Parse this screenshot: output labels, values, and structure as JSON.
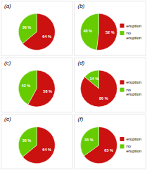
{
  "chart_data": [
    {
      "type": "pie",
      "title": "(a)",
      "values": [
        64,
        36
      ],
      "value_labels": [
        "64 %",
        "36 %"
      ],
      "colors": [
        "#cc1111",
        "#66cc00"
      ],
      "data_labels": true
    },
    {
      "type": "pie",
      "title": "(b)",
      "categories": [
        "eruption",
        "no\neruption"
      ],
      "values": [
        52,
        48
      ],
      "value_labels": [
        "52 %",
        "48 %"
      ],
      "colors": [
        "#cc1111",
        "#66cc00"
      ],
      "data_labels": true,
      "legend": "right"
    },
    {
      "type": "pie",
      "title": "(c)",
      "values": [
        58,
        42
      ],
      "value_labels": [
        "58 %",
        "42 %"
      ],
      "colors": [
        "#cc1111",
        "#66cc00"
      ],
      "data_labels": true
    },
    {
      "type": "pie",
      "title": "(d)",
      "categories": [
        "eruption",
        "no\neruption"
      ],
      "values": [
        86,
        14
      ],
      "value_labels": [
        "86 %",
        "14 %"
      ],
      "colors": [
        "#cc1111",
        "#66cc00"
      ],
      "data_labels": true,
      "legend": "right"
    },
    {
      "type": "pie",
      "title": "(e)",
      "values": [
        64,
        36
      ],
      "value_labels": [
        "64 %",
        "36 %"
      ],
      "colors": [
        "#cc1111",
        "#66cc00"
      ],
      "data_labels": true
    },
    {
      "type": "pie",
      "title": "(f)",
      "categories": [
        "eruption",
        "no\neruption"
      ],
      "values": [
        65,
        35
      ],
      "value_labels": [
        "65 %",
        "35 %"
      ],
      "colors": [
        "#cc1111",
        "#66cc00"
      ],
      "data_labels": true,
      "legend": "right"
    }
  ]
}
